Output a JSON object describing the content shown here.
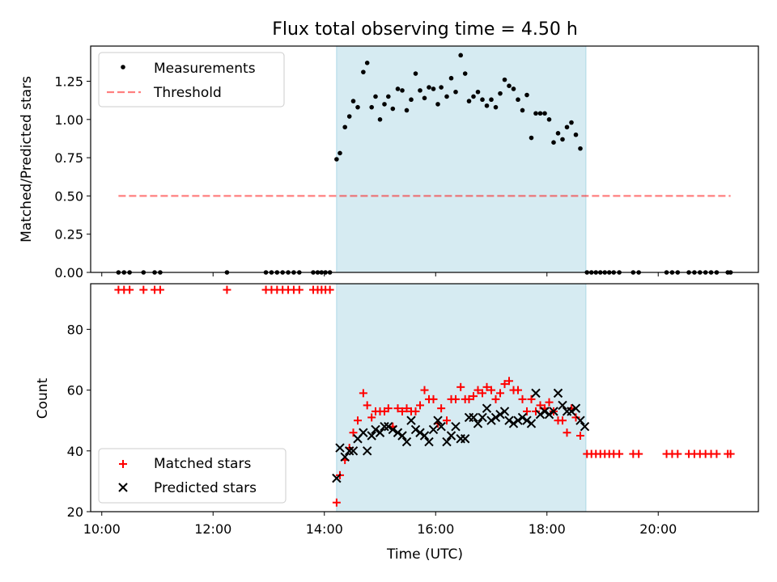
{
  "title": "Flux total observing time = 4.50 h",
  "colors": {
    "shade": "#add8e6",
    "measurement": "#000000",
    "threshold": "#ff0000",
    "matched": "#ff0000",
    "predicted": "#000000"
  },
  "chart_data": [
    {
      "type": "scatter",
      "panel": "top",
      "xlabel": "",
      "ylabel": "Matched/Predicted stars",
      "xlim": [
        9.8,
        21.8
      ],
      "ylim": [
        0,
        1.48
      ],
      "yticks": [
        "0.00",
        "0.25",
        "0.50",
        "0.75",
        "1.00",
        "1.25"
      ],
      "ytick_values": [
        0,
        0.25,
        0.5,
        0.75,
        1.0,
        1.25
      ],
      "xtick_values": [
        10,
        12,
        14,
        16,
        18,
        20
      ],
      "shaded_span": [
        14.22,
        18.7
      ],
      "legend": {
        "placement": "top-left",
        "entries": [
          "Measurements",
          "Threshold"
        ]
      },
      "threshold": {
        "name": "Threshold",
        "value": 0.5,
        "x_range": [
          10.3,
          21.3
        ],
        "style": "dashed"
      },
      "series": [
        {
          "name": "Measurements",
          "marker": "dot",
          "points": [
            [
              10.3,
              0
            ],
            [
              10.4,
              0
            ],
            [
              10.5,
              0
            ],
            [
              10.75,
              0
            ],
            [
              10.95,
              0
            ],
            [
              11.05,
              0
            ],
            [
              12.25,
              0
            ],
            [
              12.95,
              0
            ],
            [
              13.05,
              0
            ],
            [
              13.15,
              0
            ],
            [
              13.25,
              0
            ],
            [
              13.35,
              0
            ],
            [
              13.45,
              0
            ],
            [
              13.55,
              0
            ],
            [
              13.8,
              0
            ],
            [
              13.88,
              0
            ],
            [
              13.95,
              0
            ],
            [
              14.02,
              0
            ],
            [
              14.1,
              0
            ],
            [
              14.22,
              0.74
            ],
            [
              14.28,
              0.78
            ],
            [
              14.37,
              0.95
            ],
            [
              14.45,
              1.02
            ],
            [
              14.52,
              1.12
            ],
            [
              14.6,
              1.08
            ],
            [
              14.7,
              1.31
            ],
            [
              14.77,
              1.37
            ],
            [
              14.85,
              1.08
            ],
            [
              14.92,
              1.15
            ],
            [
              15.0,
              1.0
            ],
            [
              15.08,
              1.1
            ],
            [
              15.15,
              1.15
            ],
            [
              15.23,
              1.07
            ],
            [
              15.32,
              1.2
            ],
            [
              15.4,
              1.19
            ],
            [
              15.48,
              1.06
            ],
            [
              15.56,
              1.13
            ],
            [
              15.64,
              1.3
            ],
            [
              15.72,
              1.19
            ],
            [
              15.8,
              1.14
            ],
            [
              15.88,
              1.21
            ],
            [
              15.96,
              1.2
            ],
            [
              16.04,
              1.1
            ],
            [
              16.1,
              1.21
            ],
            [
              16.2,
              1.15
            ],
            [
              16.28,
              1.27
            ],
            [
              16.36,
              1.18
            ],
            [
              16.45,
              1.42
            ],
            [
              16.53,
              1.3
            ],
            [
              16.6,
              1.12
            ],
            [
              16.68,
              1.15
            ],
            [
              16.76,
              1.18
            ],
            [
              16.84,
              1.13
            ],
            [
              16.92,
              1.09
            ],
            [
              17.0,
              1.13
            ],
            [
              17.08,
              1.08
            ],
            [
              17.16,
              1.17
            ],
            [
              17.24,
              1.26
            ],
            [
              17.32,
              1.22
            ],
            [
              17.4,
              1.2
            ],
            [
              17.48,
              1.13
            ],
            [
              17.56,
              1.06
            ],
            [
              17.64,
              1.16
            ],
            [
              17.72,
              0.88
            ],
            [
              17.8,
              1.04
            ],
            [
              17.88,
              1.04
            ],
            [
              17.96,
              1.04
            ],
            [
              18.04,
              1.0
            ],
            [
              18.12,
              0.85
            ],
            [
              18.2,
              0.91
            ],
            [
              18.28,
              0.87
            ],
            [
              18.36,
              0.95
            ],
            [
              18.44,
              0.98
            ],
            [
              18.52,
              0.9
            ],
            [
              18.6,
              0.81
            ],
            [
              18.72,
              0
            ],
            [
              18.8,
              0
            ],
            [
              18.88,
              0
            ],
            [
              18.96,
              0
            ],
            [
              19.04,
              0
            ],
            [
              19.12,
              0
            ],
            [
              19.2,
              0
            ],
            [
              19.3,
              0
            ],
            [
              19.55,
              0
            ],
            [
              19.65,
              0
            ],
            [
              20.15,
              0
            ],
            [
              20.25,
              0
            ],
            [
              20.35,
              0
            ],
            [
              20.55,
              0
            ],
            [
              20.65,
              0
            ],
            [
              20.75,
              0
            ],
            [
              20.85,
              0
            ],
            [
              20.95,
              0
            ],
            [
              21.05,
              0
            ],
            [
              21.25,
              0
            ],
            [
              21.3,
              0
            ]
          ]
        }
      ]
    },
    {
      "type": "scatter",
      "panel": "bottom",
      "xlabel": "Time (UTC)",
      "ylabel": "Count",
      "xlim": [
        9.8,
        21.8
      ],
      "ylim": [
        20,
        95
      ],
      "yticks": [
        "20",
        "40",
        "60",
        "80"
      ],
      "ytick_values": [
        20,
        40,
        60,
        80
      ],
      "xticks": [
        "10:00",
        "12:00",
        "14:00",
        "16:00",
        "18:00",
        "20:00"
      ],
      "xtick_values": [
        10,
        12,
        14,
        16,
        18,
        20
      ],
      "shaded_span": [
        14.22,
        18.7
      ],
      "legend": {
        "placement": "bottom-left",
        "entries": [
          "Matched stars",
          "Predicted stars"
        ]
      },
      "series": [
        {
          "name": "Matched stars",
          "marker": "plus",
          "points": [
            [
              10.3,
              93
            ],
            [
              10.4,
              93
            ],
            [
              10.5,
              93
            ],
            [
              10.75,
              93
            ],
            [
              10.95,
              93
            ],
            [
              11.05,
              93
            ],
            [
              12.25,
              93
            ],
            [
              12.95,
              93
            ],
            [
              13.05,
              93
            ],
            [
              13.15,
              93
            ],
            [
              13.25,
              93
            ],
            [
              13.35,
              93
            ],
            [
              13.45,
              93
            ],
            [
              13.55,
              93
            ],
            [
              13.8,
              93
            ],
            [
              13.88,
              93
            ],
            [
              13.95,
              93
            ],
            [
              14.02,
              93
            ],
            [
              14.1,
              93
            ],
            [
              14.22,
              23
            ],
            [
              14.28,
              32
            ],
            [
              14.37,
              37
            ],
            [
              14.45,
              41
            ],
            [
              14.52,
              46
            ],
            [
              14.6,
              50
            ],
            [
              14.7,
              59
            ],
            [
              14.77,
              55
            ],
            [
              14.85,
              51
            ],
            [
              14.92,
              53
            ],
            [
              15.0,
              53
            ],
            [
              15.08,
              53
            ],
            [
              15.15,
              54
            ],
            [
              15.23,
              48
            ],
            [
              15.32,
              54
            ],
            [
              15.4,
              53
            ],
            [
              15.48,
              54
            ],
            [
              15.56,
              53
            ],
            [
              15.64,
              53
            ],
            [
              15.72,
              55
            ],
            [
              15.8,
              60
            ],
            [
              15.88,
              57
            ],
            [
              15.96,
              57
            ],
            [
              16.04,
              49
            ],
            [
              16.1,
              54
            ],
            [
              16.2,
              50
            ],
            [
              16.28,
              57
            ],
            [
              16.36,
              57
            ],
            [
              16.45,
              61
            ],
            [
              16.53,
              57
            ],
            [
              16.6,
              57
            ],
            [
              16.68,
              58
            ],
            [
              16.76,
              60
            ],
            [
              16.84,
              59
            ],
            [
              16.92,
              61
            ],
            [
              17.0,
              60
            ],
            [
              17.08,
              57
            ],
            [
              17.16,
              59
            ],
            [
              17.24,
              62
            ],
            [
              17.32,
              63
            ],
            [
              17.4,
              60
            ],
            [
              17.48,
              60
            ],
            [
              17.56,
              57
            ],
            [
              17.64,
              53
            ],
            [
              17.72,
              57
            ],
            [
              17.8,
              53
            ],
            [
              17.88,
              55
            ],
            [
              17.96,
              54
            ],
            [
              18.04,
              56
            ],
            [
              18.12,
              53
            ],
            [
              18.2,
              50
            ],
            [
              18.28,
              50
            ],
            [
              18.36,
              46
            ],
            [
              18.44,
              54
            ],
            [
              18.52,
              51
            ],
            [
              18.6,
              45
            ],
            [
              18.72,
              39
            ],
            [
              18.8,
              39
            ],
            [
              18.88,
              39
            ],
            [
              18.96,
              39
            ],
            [
              19.04,
              39
            ],
            [
              19.12,
              39
            ],
            [
              19.2,
              39
            ],
            [
              19.3,
              39
            ],
            [
              19.55,
              39
            ],
            [
              19.65,
              39
            ],
            [
              20.15,
              39
            ],
            [
              20.25,
              39
            ],
            [
              20.35,
              39
            ],
            [
              20.55,
              39
            ],
            [
              20.65,
              39
            ],
            [
              20.75,
              39
            ],
            [
              20.85,
              39
            ],
            [
              20.95,
              39
            ],
            [
              21.05,
              39
            ],
            [
              21.25,
              39
            ],
            [
              21.3,
              39
            ]
          ]
        },
        {
          "name": "Predicted stars",
          "marker": "x",
          "points": [
            [
              14.22,
              31
            ],
            [
              14.28,
              41
            ],
            [
              14.37,
              38
            ],
            [
              14.45,
              40
            ],
            [
              14.52,
              40
            ],
            [
              14.6,
              44
            ],
            [
              14.7,
              46
            ],
            [
              14.77,
              40
            ],
            [
              14.85,
              45
            ],
            [
              14.92,
              47
            ],
            [
              15.0,
              46
            ],
            [
              15.08,
              48
            ],
            [
              15.15,
              48
            ],
            [
              15.23,
              47
            ],
            [
              15.32,
              46
            ],
            [
              15.4,
              45
            ],
            [
              15.48,
              43
            ],
            [
              15.56,
              50
            ],
            [
              15.64,
              47
            ],
            [
              15.72,
              46
            ],
            [
              15.8,
              45
            ],
            [
              15.88,
              43
            ],
            [
              15.96,
              47
            ],
            [
              16.04,
              50
            ],
            [
              16.1,
              48
            ],
            [
              16.2,
              43
            ],
            [
              16.28,
              45
            ],
            [
              16.36,
              48
            ],
            [
              16.45,
              44
            ],
            [
              16.53,
              44
            ],
            [
              16.6,
              51
            ],
            [
              16.68,
              51
            ],
            [
              16.76,
              49
            ],
            [
              16.84,
              51
            ],
            [
              16.92,
              54
            ],
            [
              17.0,
              50
            ],
            [
              17.08,
              51
            ],
            [
              17.16,
              52
            ],
            [
              17.24,
              53
            ],
            [
              17.32,
              50
            ],
            [
              17.4,
              49
            ],
            [
              17.48,
              50
            ],
            [
              17.56,
              51
            ],
            [
              17.64,
              50
            ],
            [
              17.72,
              49
            ],
            [
              17.8,
              59
            ],
            [
              17.88,
              52
            ],
            [
              17.96,
              53
            ],
            [
              18.04,
              52
            ],
            [
              18.12,
              53
            ],
            [
              18.2,
              59
            ],
            [
              18.28,
              55
            ],
            [
              18.36,
              53
            ],
            [
              18.44,
              53
            ],
            [
              18.52,
              54
            ],
            [
              18.6,
              50
            ],
            [
              18.68,
              48
            ]
          ]
        }
      ]
    }
  ]
}
